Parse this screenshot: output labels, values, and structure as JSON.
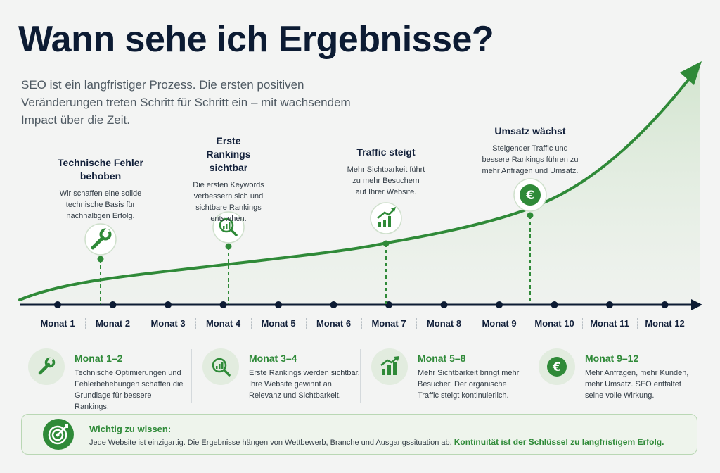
{
  "header": {
    "title": "Wann sehe ich Ergebnisse?",
    "subtitle": "SEO ist ein langfristiger Prozess. Die ersten positiven Veränderungen treten Schritt für Schritt ein – mit wachsendem Impact über die Zeit."
  },
  "timeline": {
    "months": [
      "Monat 1",
      "Monat 2",
      "Monat 3",
      "Monat 4",
      "Monat 5",
      "Monat 6",
      "Monat 7",
      "Monat 8",
      "Monat 9",
      "Monat 10",
      "Monat 11",
      "Monat 12"
    ]
  },
  "milestones": [
    {
      "title": "Technische Fehler behoben",
      "text": "Wir schaffen eine solide technische Basis für nachhaltigen Erfolg.",
      "icon": "wrench-icon"
    },
    {
      "title": "Erste Rankings sichtbar",
      "text": "Die ersten Keywords verbessern sich und sichtbare Rankings entstehen.",
      "icon": "magnifier-chart-icon"
    },
    {
      "title": "Traffic steigt",
      "text": "Mehr Sichtbarkeit führt zu mehr Besuchern auf Ihrer Website.",
      "icon": "bar-chart-up-icon"
    },
    {
      "title": "Umsatz wächst",
      "text": "Steigender Traffic und bessere Rankings führen zu mehr Anfragen und Umsatz.",
      "icon": "euro-icon"
    }
  ],
  "phases": [
    {
      "title": "Monat 1–2",
      "text": "Technische Optimierungen und Fehlerbehebungen schaffen die Grundlage für bessere Rankings.",
      "icon": "wrench-icon"
    },
    {
      "title": "Monat 3–4",
      "text": "Erste Rankings werden sichtbar. Ihre Website gewinnt an Relevanz und Sichtbarkeit.",
      "icon": "magnifier-chart-icon"
    },
    {
      "title": "Monat 5–8",
      "text": "Mehr Sichtbarkeit bringt mehr Besucher. Der organische Traffic steigt kontinuierlich.",
      "icon": "bar-chart-up-icon"
    },
    {
      "title": "Monat 9–12",
      "text": "Mehr Anfragen, mehr Kunden, mehr Umsatz. SEO entfaltet seine volle Wirkung.",
      "icon": "euro-icon"
    }
  ],
  "note": {
    "title": "Wichtig zu wissen:",
    "text": "Jede Website ist einzigartig. Die Ergebnisse hängen von Wettbewerb, Branche und Ausgangssituation ab.",
    "highlight": "Kontinuität ist der Schlüssel zu langfristigem Erfolg.",
    "icon": "target-icon"
  },
  "colors": {
    "accent": "#2f8a38",
    "navy": "#0c1b33",
    "background": "#f3f4f3"
  }
}
